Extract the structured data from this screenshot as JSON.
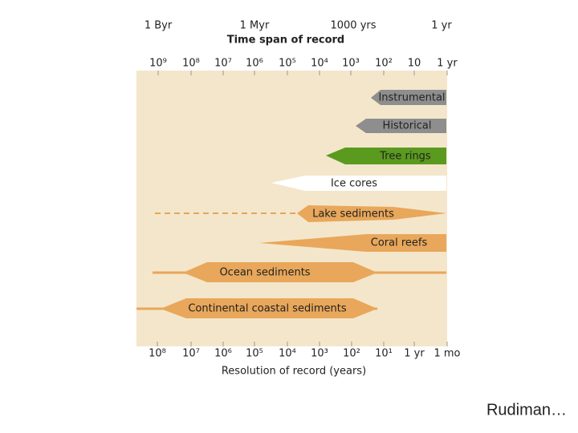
{
  "top_axis": {
    "span_labels": [
      "1 Byr",
      "1 Myr",
      "1000 yrs",
      "1 yr"
    ],
    "title": "Time span of record",
    "ticks": [
      "10⁹",
      "10⁸",
      "10⁷",
      "10⁶",
      "10⁵",
      "10⁴",
      "10³",
      "10²",
      "10",
      "1 yr"
    ]
  },
  "records": [
    {
      "label": "Instrumental"
    },
    {
      "label": "Historical"
    },
    {
      "label": "Tree rings"
    },
    {
      "label": "Ice cores"
    },
    {
      "label": "Lake sediments"
    },
    {
      "label": "Coral reefs"
    },
    {
      "label": "Ocean sediments"
    },
    {
      "label": "Continental coastal sediments"
    }
  ],
  "bottom_axis": {
    "ticks": [
      "10⁸",
      "10⁷",
      "10⁶",
      "10⁵",
      "10⁴",
      "10³",
      "10²",
      "10¹",
      "1 yr",
      "1 mo"
    ],
    "title": "Resolution of record (years)"
  },
  "footer": "Rudiman…"
}
